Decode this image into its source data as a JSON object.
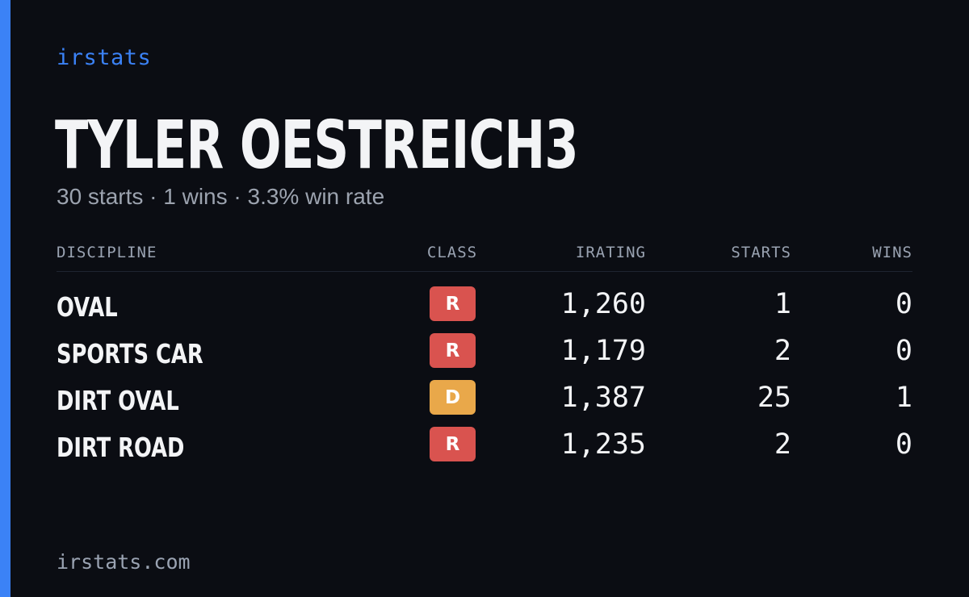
{
  "brand": "irstats",
  "title": "TYLER OESTREICH3",
  "subtitle": "30 starts · 1 wins · 3.3% win rate",
  "colors": {
    "accent": "#3b82f6",
    "class_R": "#d9534f",
    "class_D": "#e9a84a"
  },
  "table": {
    "headers": {
      "discipline": "DISCIPLINE",
      "class": "CLASS",
      "irating": "IRATING",
      "starts": "STARTS",
      "wins": "WINS"
    },
    "rows": [
      {
        "discipline": "OVAL",
        "class": "R",
        "irating": "1,260",
        "starts": "1",
        "wins": "0"
      },
      {
        "discipline": "SPORTS CAR",
        "class": "R",
        "irating": "1,179",
        "starts": "2",
        "wins": "0"
      },
      {
        "discipline": "DIRT OVAL",
        "class": "D",
        "irating": "1,387",
        "starts": "25",
        "wins": "1"
      },
      {
        "discipline": "DIRT ROAD",
        "class": "R",
        "irating": "1,235",
        "starts": "2",
        "wins": "0"
      }
    ]
  },
  "footer": "irstats.com"
}
